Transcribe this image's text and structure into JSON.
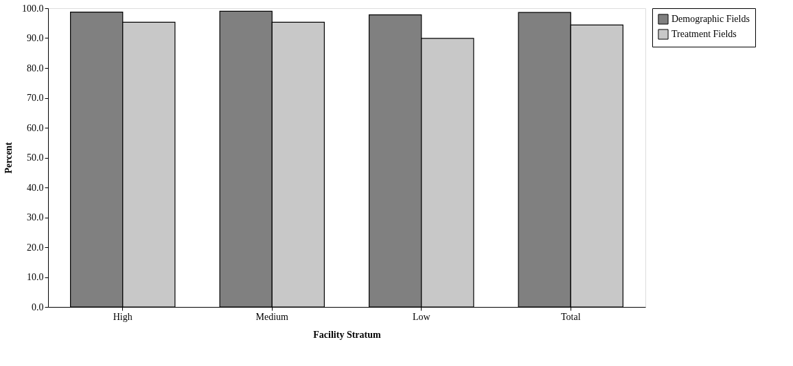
{
  "chart_data": {
    "type": "bar",
    "xlabel": "Facility Stratum",
    "ylabel": "Percent",
    "categories": [
      "High",
      "Medium",
      "Low",
      "Total"
    ],
    "series": [
      {
        "name": "Demographic Fields",
        "color": "#808080",
        "values": [
          98.7,
          99.0,
          97.8,
          98.6
        ]
      },
      {
        "name": "Treatment Fields",
        "color": "#c8c8c8",
        "values": [
          95.3,
          95.3,
          89.9,
          94.4
        ]
      }
    ],
    "ylim": [
      0,
      100
    ],
    "yticks": [
      {
        "value": 0,
        "label": "0.0"
      },
      {
        "value": 10,
        "label": "10.0"
      },
      {
        "value": 20,
        "label": "20.0"
      },
      {
        "value": 30,
        "label": "30.0"
      },
      {
        "value": 40,
        "label": "40.0"
      },
      {
        "value": 50,
        "label": "50.0"
      },
      {
        "value": 60,
        "label": "60.0"
      },
      {
        "value": 70,
        "label": "70.0"
      },
      {
        "value": 80,
        "label": "80.0"
      },
      {
        "value": 90,
        "label": "90.0"
      },
      {
        "value": 100,
        "label": "100.0"
      }
    ],
    "grid": false,
    "legend": "right"
  }
}
